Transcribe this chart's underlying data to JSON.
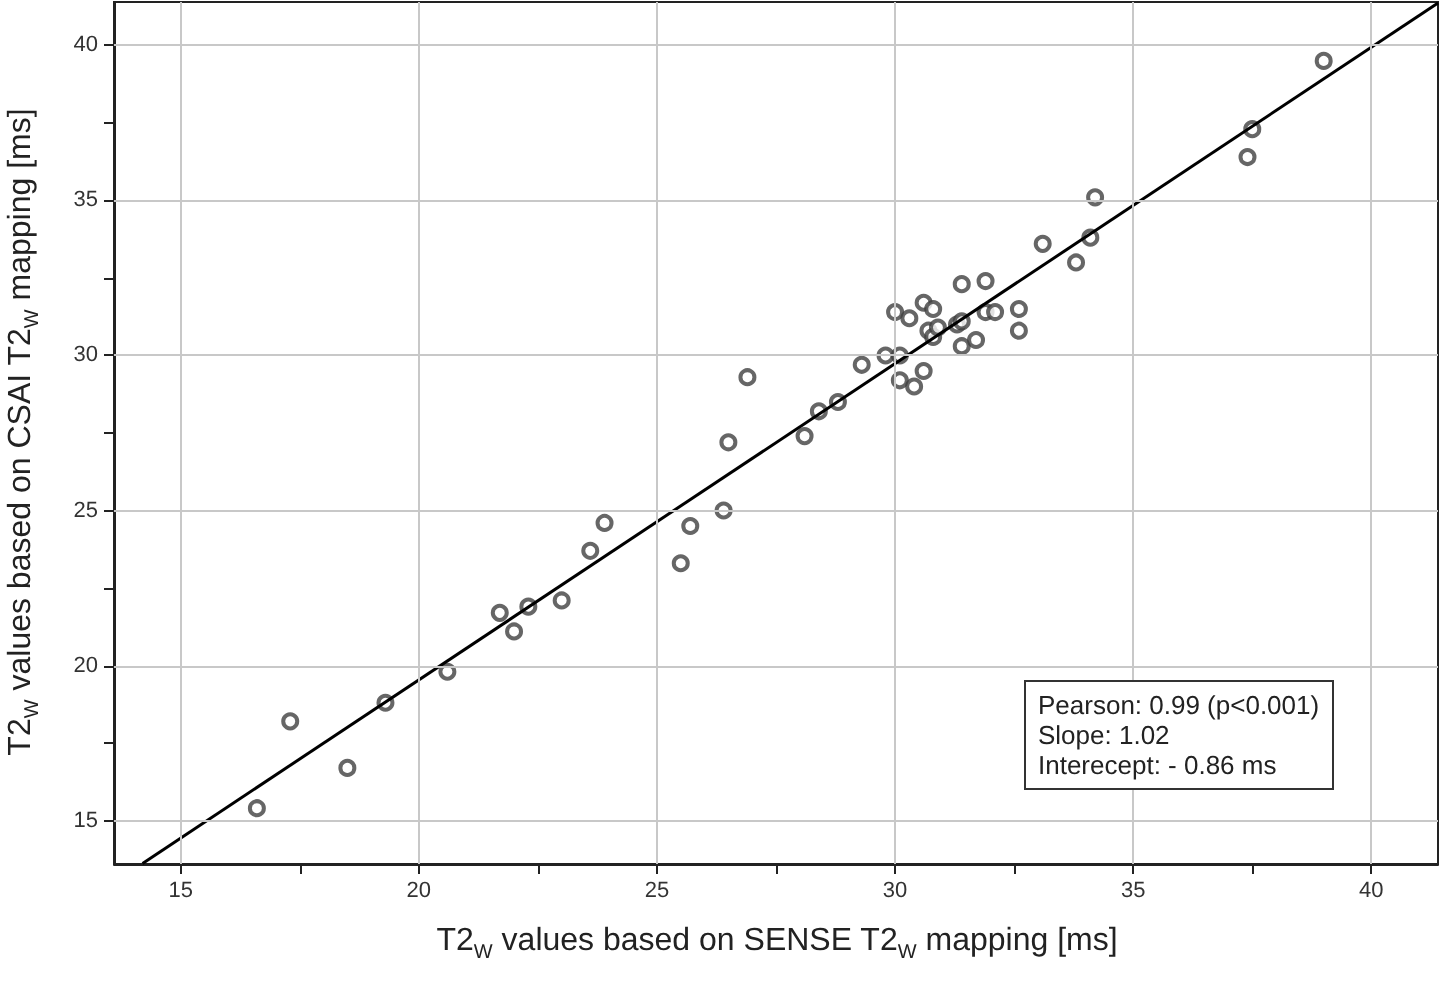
{
  "chart_data": {
    "type": "scatter",
    "xlabel": "T2$_{W}$ values based on SENSE T2$_{W}$ mapping [ms]",
    "ylabel": "T2$_{W}$ values based on CSAI T2$_{W}$ mapping [ms]",
    "xlim": [
      13.6,
      41.4
    ],
    "ylim": [
      13.6,
      41.4
    ],
    "xticks": [
      15,
      {
        "value": 17.5,
        "label": null
      },
      20,
      {
        "value": 22.5,
        "label": null
      },
      25,
      {
        "value": 27.5,
        "label": null
      },
      30,
      {
        "value": 32.5,
        "label": null
      },
      35,
      {
        "value": 37.5,
        "label": null
      },
      40
    ],
    "yticks": [
      15,
      {
        "value": 17.5,
        "label": null
      },
      20,
      {
        "value": 22.5,
        "label": null
      },
      25,
      {
        "value": 27.5,
        "label": null
      },
      30,
      {
        "value": 32.5,
        "label": null
      },
      35,
      {
        "value": 37.5,
        "label": null
      },
      40
    ],
    "grid": true,
    "marker": "circle",
    "series": [
      {
        "color": "#404040",
        "x": [
          16.6,
          17.3,
          18.5,
          19.3,
          20.6,
          21.7,
          22.0,
          22.3,
          23.0,
          23.6,
          23.9,
          25.5,
          25.7,
          26.4,
          26.5,
          26.9,
          28.1,
          28.4,
          28.8,
          29.3,
          29.8,
          30.0,
          30.1,
          30.1,
          30.3,
          30.4,
          30.6,
          30.6,
          30.7,
          30.8,
          30.8,
          30.9,
          31.3,
          31.4,
          31.4,
          31.4,
          31.7,
          31.9,
          31.9,
          32.1,
          32.6,
          32.6,
          33.1,
          33.8,
          34.1,
          34.2,
          37.4,
          37.5,
          39.0
        ],
        "values": [
          15.4,
          18.2,
          16.7,
          18.8,
          19.8,
          21.7,
          21.1,
          21.9,
          22.1,
          23.7,
          24.6,
          23.3,
          24.5,
          25.0,
          27.2,
          29.3,
          27.4,
          28.2,
          28.5,
          29.7,
          30.0,
          31.4,
          30.0,
          29.2,
          31.2,
          29.0,
          29.5,
          31.7,
          30.8,
          31.5,
          30.6,
          30.9,
          31.0,
          32.3,
          30.3,
          31.1,
          30.5,
          31.4,
          32.4,
          31.4,
          31.5,
          30.8,
          33.6,
          33.0,
          33.8,
          35.1,
          36.4,
          37.3,
          39.5
        ]
      },
      {
        "type": "line",
        "color": "#000000",
        "marker": "none",
        "x": [
          14.2,
          41.4
        ],
        "values": [
          13.62,
          41.37
        ]
      }
    ],
    "annotations": [
      "Pearson: 0.99 (p<0.001)",
      "Slope: 1.02",
      "Interecept: - 0.86 ms"
    ]
  }
}
